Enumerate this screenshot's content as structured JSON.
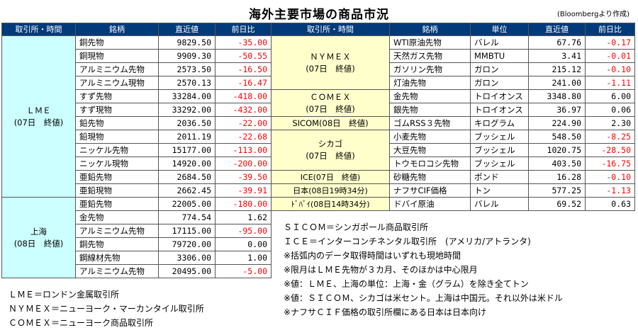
{
  "title": "海外主要市場の商品市況",
  "credit": "(Bloombergより作成)",
  "headers": {
    "left": [
      "取引所・時間",
      "銘柄",
      "直近値",
      "前日比"
    ],
    "right": [
      "取引所・時間",
      "銘柄",
      "単位",
      "直近値",
      "前日比"
    ]
  },
  "left_groups": [
    {
      "label1": "ＬＭＥ",
      "label2": "(07日　終値)"
    },
    {
      "label1": "上海",
      "label2": "(08日　終値)"
    }
  ],
  "left_rows": [
    {
      "name": "銅先物",
      "value": "9829.50",
      "change": "-35.00"
    },
    {
      "name": "銅現物",
      "value": "9909.30",
      "change": "-50.55"
    },
    {
      "name": "アルミニウム先物",
      "value": "2573.50",
      "change": "-16.50"
    },
    {
      "name": "アルミニウム現物",
      "value": "2570.13",
      "change": "-16.47"
    },
    {
      "name": "すず先物",
      "value": "33284.00",
      "change": "-418.00"
    },
    {
      "name": "すず現物",
      "value": "33292.00",
      "change": "-432.00"
    },
    {
      "name": "鉛先物",
      "value": "2036.50",
      "change": "-22.00"
    },
    {
      "name": "鉛現物",
      "value": "2011.19",
      "change": "-22.68"
    },
    {
      "name": "ニッケル先物",
      "value": "15177.00",
      "change": "-113.00"
    },
    {
      "name": "ニッケル現物",
      "value": "14920.00",
      "change": "-200.00"
    },
    {
      "name": "亜鉛先物",
      "value": "2684.50",
      "change": "-39.50"
    },
    {
      "name": "亜鉛現物",
      "value": "2662.45",
      "change": "-39.91"
    },
    {
      "name": "亜鉛先物",
      "value": "22005.00",
      "change": "-180.00"
    },
    {
      "name": "金先物",
      "value": "774.54",
      "change": "1.62"
    },
    {
      "name": "アルミニウム先物",
      "value": "17115.00",
      "change": "-95.00"
    },
    {
      "name": "銅先物",
      "value": "79720.00",
      "change": "0.00"
    },
    {
      "name": "鋼線材先物",
      "value": "3306.00",
      "change": "1.00"
    },
    {
      "name": "アルミニウム先物",
      "value": "20495.00",
      "change": "-5.00"
    }
  ],
  "right_groups": [
    {
      "label1": "ＮＹＭＥＸ",
      "label2": "(07日　終値)"
    },
    {
      "label1": "ＣＯＭＥＸ",
      "label2": "(07日　終値)"
    },
    {
      "label1": "SICOM(08日　終値)"
    },
    {
      "label1": "シカゴ",
      "label2": "(07日　終値)"
    },
    {
      "label1": "ICE(07日　終値)"
    },
    {
      "label1": "日本(08日19時34分)"
    },
    {
      "label1": "ﾄﾞﾊﾞｲ(08日14時34分)"
    }
  ],
  "right_rows": [
    {
      "name": "WTI原油先物",
      "unit": "バレル",
      "value": "67.76",
      "change": "-0.17"
    },
    {
      "name": "天然ガス先物",
      "unit": "MMBTU",
      "value": "3.41",
      "change": "-0.01"
    },
    {
      "name": "ガソリン先物",
      "unit": "ガロン",
      "value": "215.12",
      "change": "-0.10"
    },
    {
      "name": "灯油先物",
      "unit": "ガロン",
      "value": "241.00",
      "change": "-1.11"
    },
    {
      "name": "金先物",
      "unit": "トロイオンス",
      "value": "3348.80",
      "change": "6.00"
    },
    {
      "name": "銀先物",
      "unit": "トロイオンス",
      "value": "36.97",
      "change": "0.06"
    },
    {
      "name": "ゴムRSS３先物",
      "unit": "キログラム",
      "value": "224.90",
      "change": "2.30"
    },
    {
      "name": "小麦先物",
      "unit": "ブッシェル",
      "value": "548.50",
      "change": "-8.25"
    },
    {
      "name": "大豆先物",
      "unit": "ブッシェル",
      "value": "1020.75",
      "change": "-28.50"
    },
    {
      "name": "トウモロコシ先物",
      "unit": "ブッシェル",
      "value": "403.50",
      "change": "-16.75"
    },
    {
      "name": "砂糖先物",
      "unit": "ポンド",
      "value": "16.28",
      "change": "-0.10"
    },
    {
      "name": "ナフサCIF価格",
      "unit": "トン",
      "value": "577.25",
      "change": "-1.13"
    },
    {
      "name": "ドバイ原油",
      "unit": "バレル",
      "value": "69.52",
      "change": "0.63"
    }
  ],
  "notes": [
    "ＳＩＣＯＭ＝シンガポール商品取引所",
    "ＩＣＥ＝インターコンチネンタル取引所　(アメリカ/アトランタ)",
    "※括弧内のデータ取得時間はいずれも現地時間",
    "※限月はＬＭＥ先物が３カ月、そのほかは中心限月",
    "※値：ＬＭＥ、上海の単位：上海・金（グラム）を除き全てトン",
    "※値：ＳＩＣＯＭ、シカゴは米セント。上海は中国元。それ以外は米ドル",
    "※ナフサＣＩＦ価格の取引所欄にある日本は日本向け"
  ],
  "legend": [
    "ＬＭＥ＝ロンドン金属取引所",
    "ＮＹＭＥＸ＝ニューヨーク・マーカンタイル取引所",
    "ＣＯＭＥＸ＝ニューヨーク商品取引所"
  ]
}
